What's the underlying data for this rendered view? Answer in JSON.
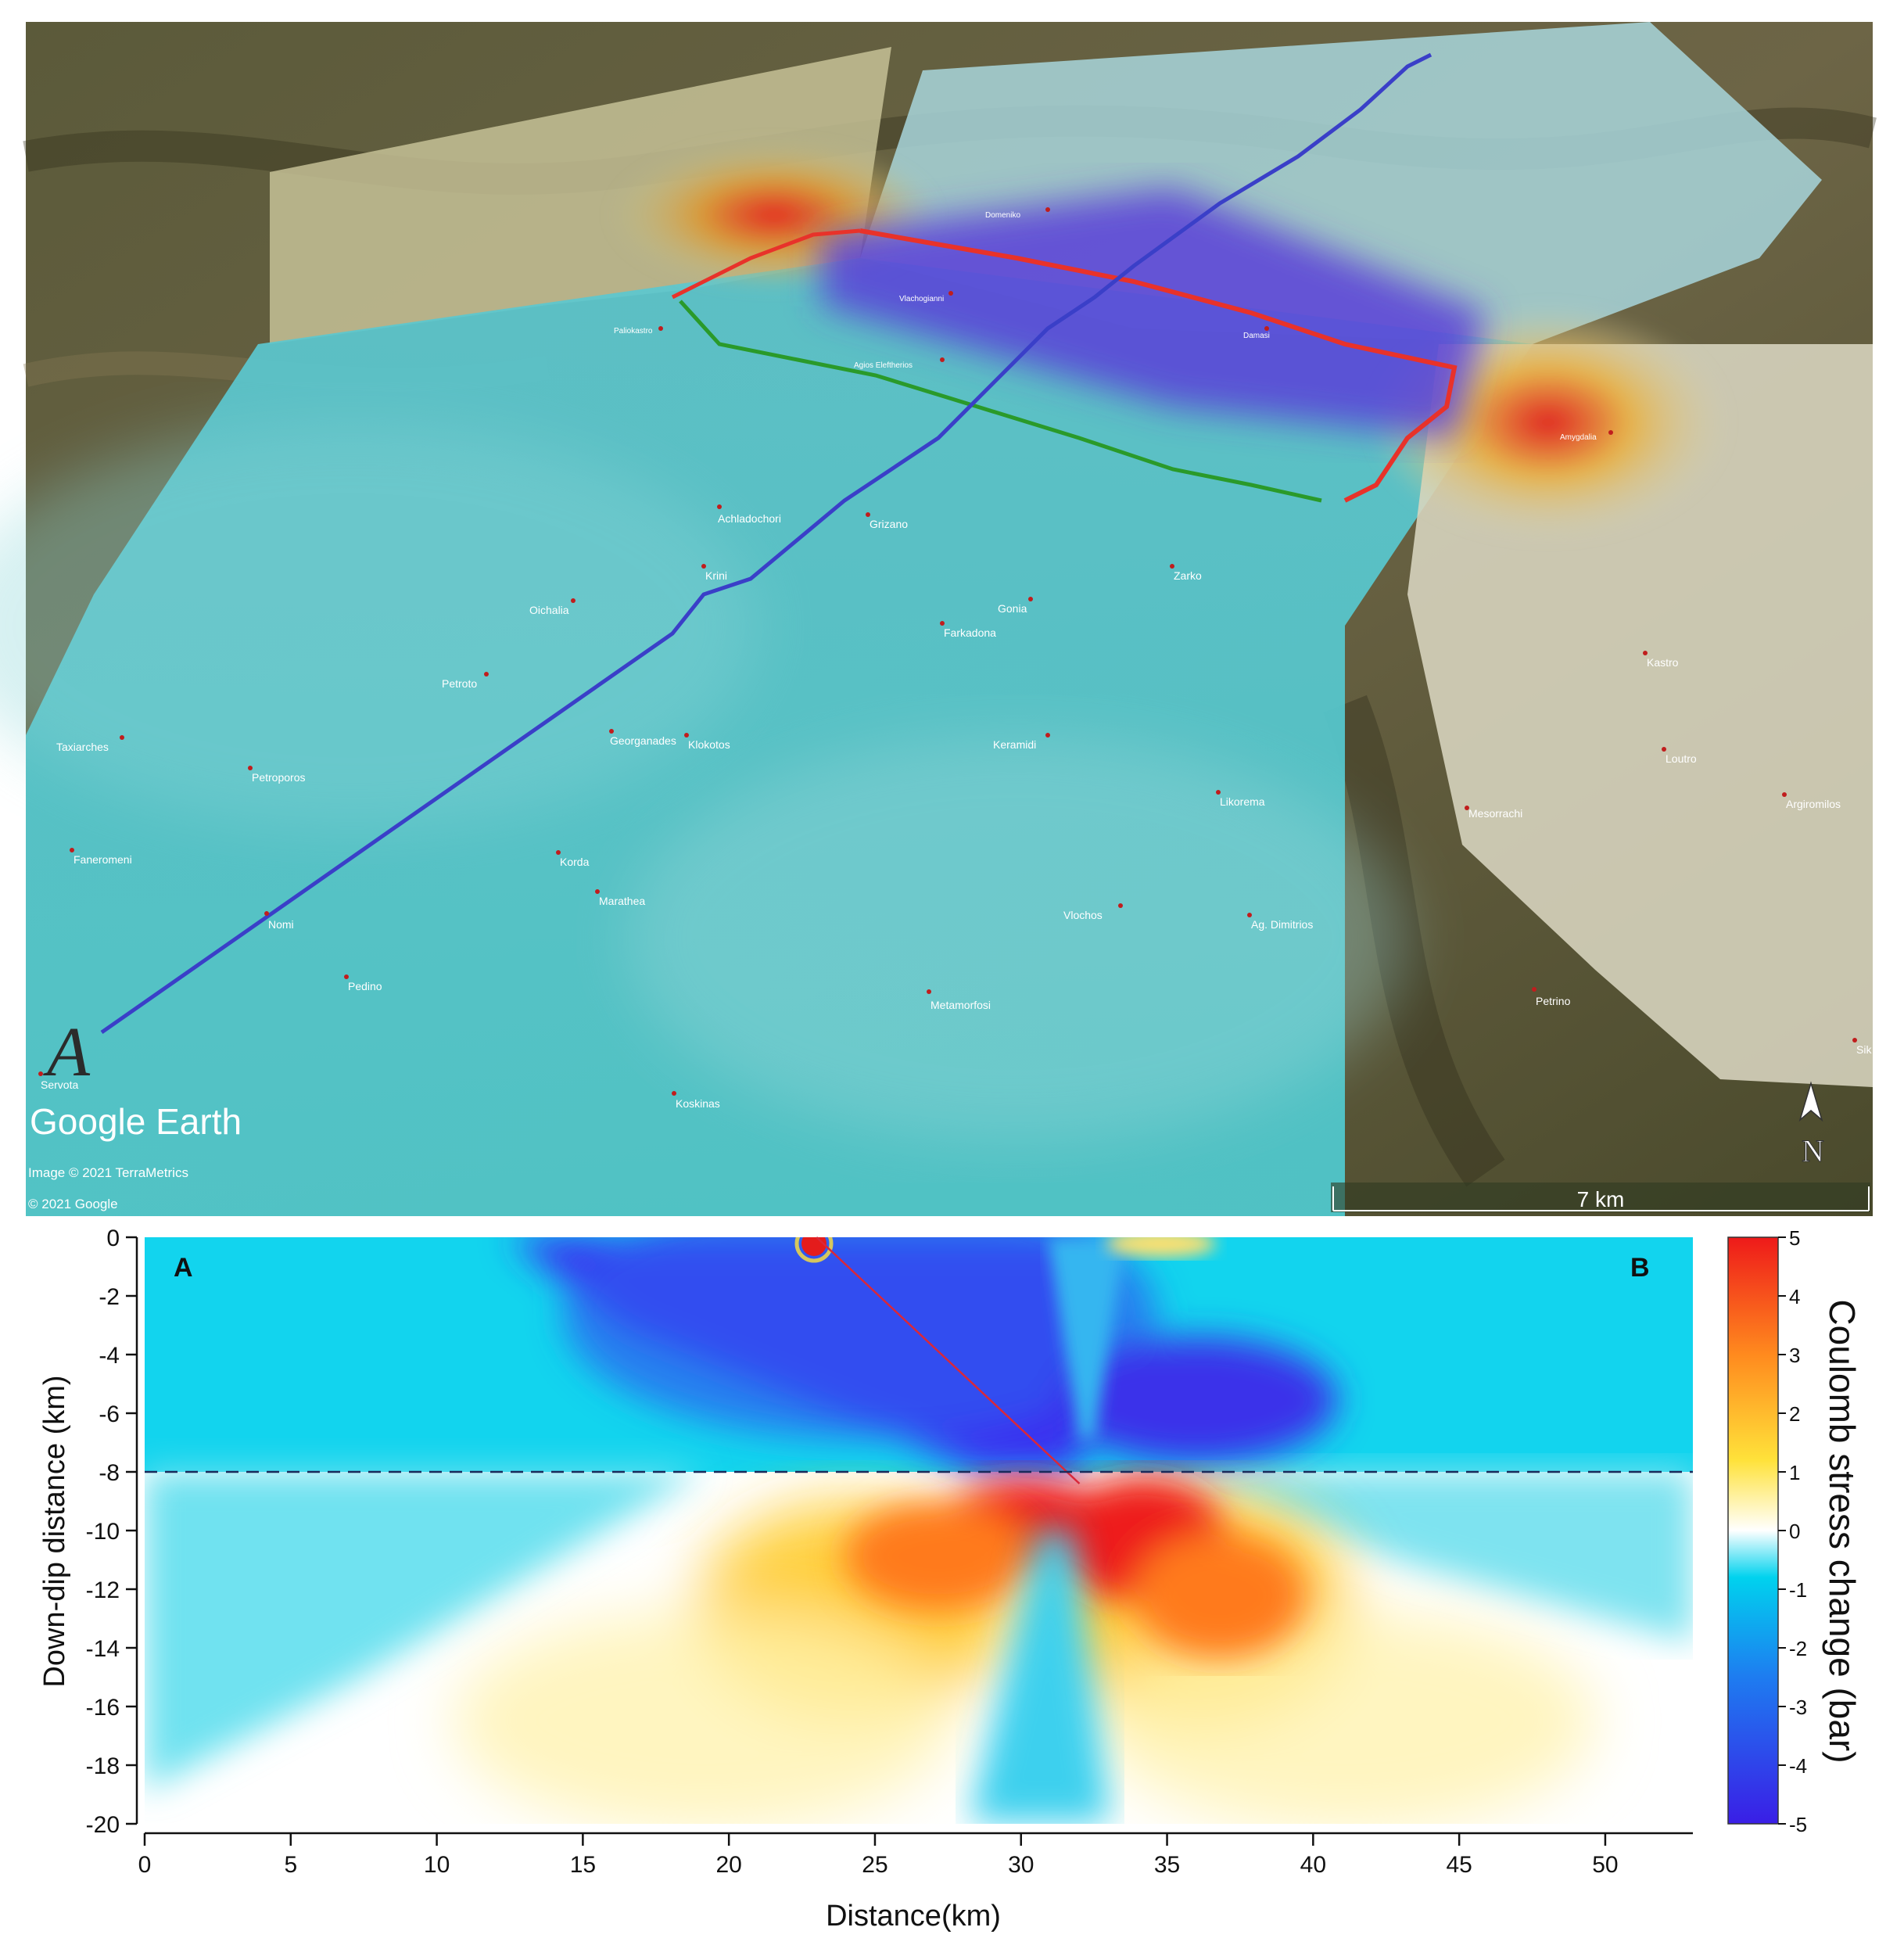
{
  "map": {
    "branding": "Google Earth",
    "attribution_image": "Image © 2021 TerraMetrics",
    "attribution_copy": "© 2021 Google",
    "scale_label": "7 km",
    "north_label": "N",
    "profile_start_label": "A",
    "places": [
      {
        "name": "Servota"
      },
      {
        "name": "Nomi"
      },
      {
        "name": "Pedino"
      },
      {
        "name": "Faneromeni"
      },
      {
        "name": "Petroporos"
      },
      {
        "name": "Taxiarches"
      },
      {
        "name": "Petroto"
      },
      {
        "name": "Oichalia"
      },
      {
        "name": "Krini"
      },
      {
        "name": "Achladochori"
      },
      {
        "name": "Grizano"
      },
      {
        "name": "Georganades"
      },
      {
        "name": "Klokotos"
      },
      {
        "name": "Korda"
      },
      {
        "name": "Marathea"
      },
      {
        "name": "Farkadona"
      },
      {
        "name": "Gonia"
      },
      {
        "name": "Zarko"
      },
      {
        "name": "Keramidi"
      },
      {
        "name": "Likorema"
      },
      {
        "name": "Vlochos"
      },
      {
        "name": "Ag. Dimitrios"
      },
      {
        "name": "Metamorfosi"
      },
      {
        "name": "Koskinas"
      },
      {
        "name": "Petrino"
      },
      {
        "name": "Mesorrachi"
      },
      {
        "name": "Loutro"
      },
      {
        "name": "Kastro"
      },
      {
        "name": "Argiromilos"
      },
      {
        "name": "Amygdalia"
      },
      {
        "name": "Damasi"
      },
      {
        "name": "Vlachogianni"
      },
      {
        "name": "Domeniko"
      },
      {
        "name": "Agios Eleftherios"
      },
      {
        "name": "Paliokastro"
      },
      {
        "name": "Sik"
      }
    ]
  },
  "chart_data": {
    "type": "heatmap",
    "title": "",
    "xlabel": "Distance(km)",
    "ylabel": "Down-dip distance (km)",
    "xlim": [
      0,
      53
    ],
    "ylim": [
      -20,
      0
    ],
    "x_ticks": [
      "0",
      "5",
      "10",
      "15",
      "20",
      "25",
      "30",
      "35",
      "40",
      "45",
      "50"
    ],
    "y_ticks": [
      "0",
      "-2",
      "-4",
      "-6",
      "-8",
      "-10",
      "-12",
      "-14",
      "-16",
      "-18",
      "-20"
    ],
    "corner_label_left": "A",
    "corner_label_right": "B",
    "reference_depth_km": -8,
    "fault_trace": [
      [
        23,
        0
      ],
      [
        32,
        -8.4
      ]
    ],
    "colorbar": {
      "label": "Coulomb stress change (bar)",
      "range": [
        -5,
        5
      ],
      "ticks": [
        "5",
        "4",
        "3",
        "2",
        "1",
        "0",
        "-1",
        "-2",
        "-3",
        "-4",
        "-5"
      ],
      "colors": [
        "#3a1ee6",
        "#1e64f0",
        "#00c8ee",
        "#ffffff",
        "#ffe23a",
        "#ff8a1e",
        "#ee1a1a"
      ]
    },
    "zones": [
      {
        "kind": "negative",
        "note": "stress shadow"
      },
      {
        "kind": "positive",
        "note": "stress increase"
      }
    ]
  }
}
